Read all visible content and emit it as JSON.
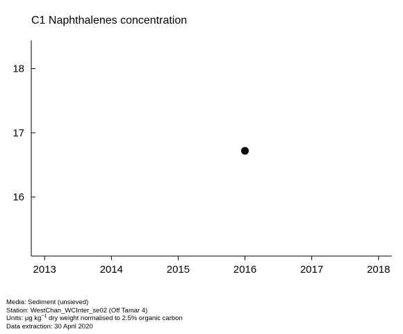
{
  "chart_data": {
    "type": "scatter",
    "title": "C1 Naphthalenes concentration",
    "xlabel": "",
    "ylabel": "",
    "x_ticks": [
      "2013",
      "2014",
      "2015",
      "2016",
      "2017",
      "2018"
    ],
    "y_ticks": [
      "16",
      "17",
      "18"
    ],
    "xlim": [
      2012.8,
      2018.2
    ],
    "ylim": [
      15.08,
      18.44
    ],
    "grid": false,
    "points": [
      {
        "x": 2016,
        "y": 16.72
      }
    ],
    "point_color": "#000000"
  },
  "footer": {
    "media": "Media: Sediment (unsieved)",
    "station": "Station: WestChan_WCInter_se02 (Off Tamar 4)",
    "units_prefix": "Units: μg kg",
    "units_sup": "−1",
    "units_suffix": " dry weight normalised to 2.5% organic carbon",
    "extraction": "Data extraction: 30 April 2020"
  }
}
